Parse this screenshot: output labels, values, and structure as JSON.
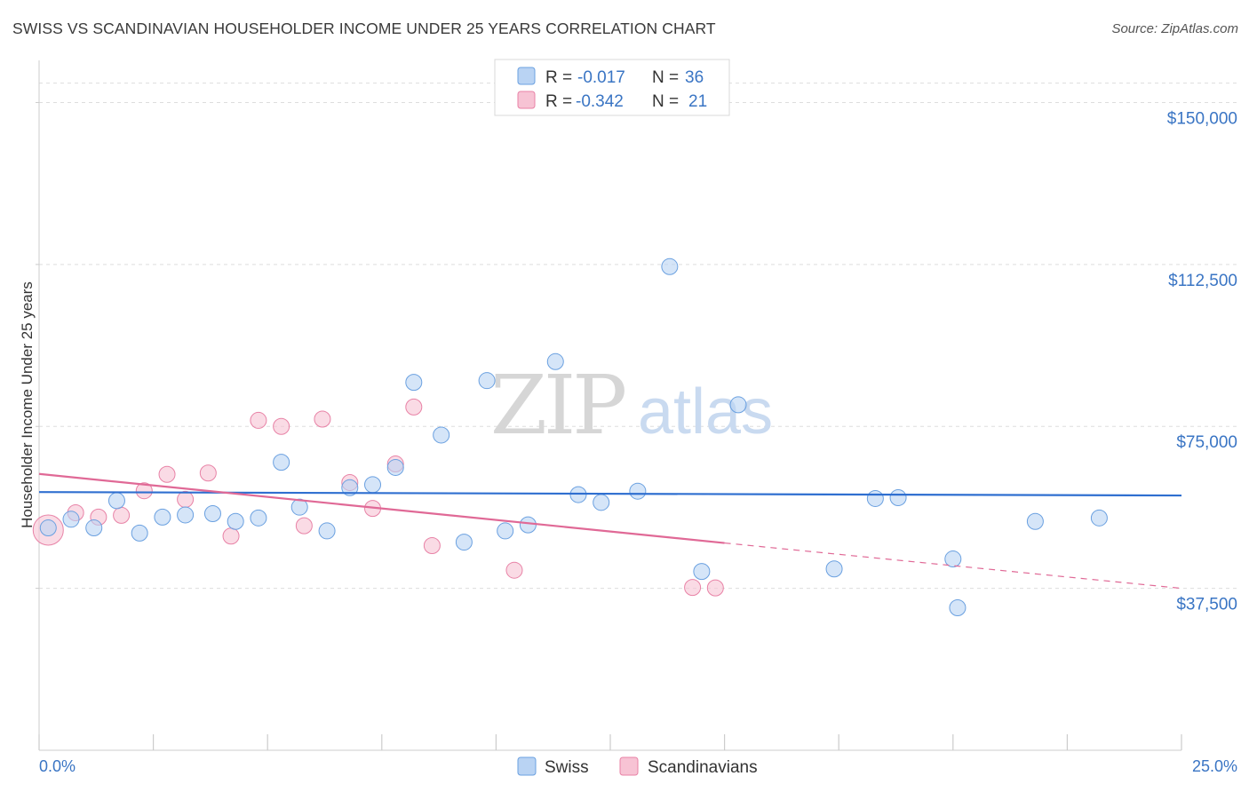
{
  "title": "SWISS VS SCANDINAVIAN HOUSEHOLDER INCOME UNDER 25 YEARS CORRELATION CHART",
  "source": "Source: ZipAtlas.com",
  "watermark": {
    "zip": "ZIP",
    "atlas": "atlas"
  },
  "colors": {
    "swiss": "#6aa0e0",
    "swiss_fill": "#b9d3f3",
    "scand": "#e882a6",
    "scand_fill": "#f7c3d4",
    "swiss_line": "#2f6fd0",
    "scand_line": "#e06996",
    "axis_text": "#3a75c4"
  },
  "legend_top": {
    "swiss": {
      "r_label": "R =",
      "r_value": "-0.017",
      "n_label": "N =",
      "n_value": "36"
    },
    "scand": {
      "r_label": "R =",
      "r_value": "-0.342",
      "n_label": "N =",
      "n_value": "21"
    }
  },
  "legend_bottom": {
    "swiss": "Swiss",
    "scand": "Scandinavians"
  },
  "chart_data": {
    "type": "scatter",
    "title": "SWISS VS SCANDINAVIAN HOUSEHOLDER INCOME UNDER 25 YEARS CORRELATION CHART",
    "xlabel": "",
    "ylabel": "Householder Income Under 25 years",
    "xlim": [
      0,
      25
    ],
    "ylim": [
      0,
      157500
    ],
    "x_tick_labels": [
      "0.0%",
      "25.0%"
    ],
    "y_ticks": [
      37500,
      75000,
      112500,
      150000
    ],
    "y_tick_labels": [
      "$37,500",
      "$75,000",
      "$112,500",
      "$150,000"
    ],
    "grid": true,
    "series": [
      {
        "name": "Swiss",
        "r": -0.017,
        "n": 36,
        "trend": {
          "x": [
            0,
            25
          ],
          "y": [
            59800,
            59000
          ]
        },
        "points": [
          [
            0.2,
            51500,
            1
          ],
          [
            0.7,
            53500,
            1
          ],
          [
            1.2,
            51500,
            1
          ],
          [
            1.7,
            57800,
            1
          ],
          [
            2.2,
            50300,
            1
          ],
          [
            2.7,
            54000,
            1
          ],
          [
            3.2,
            54500,
            1
          ],
          [
            3.8,
            54800,
            1
          ],
          [
            4.3,
            53000,
            1
          ],
          [
            4.8,
            53800,
            1
          ],
          [
            5.3,
            66700,
            1
          ],
          [
            5.7,
            56300,
            1
          ],
          [
            6.3,
            50800,
            1
          ],
          [
            6.8,
            60800,
            1
          ],
          [
            7.3,
            61500,
            1
          ],
          [
            7.8,
            65500,
            1
          ],
          [
            8.2,
            85200,
            1
          ],
          [
            8.8,
            73000,
            1
          ],
          [
            9.3,
            48200,
            1
          ],
          [
            9.8,
            85600,
            1
          ],
          [
            10.2,
            50800,
            1
          ],
          [
            10.7,
            52200,
            1
          ],
          [
            11.3,
            90000,
            1
          ],
          [
            11.8,
            59200,
            1
          ],
          [
            12.3,
            57400,
            1
          ],
          [
            13.1,
            60000,
            1
          ],
          [
            13.8,
            112000,
            1
          ],
          [
            14.5,
            41400,
            1
          ],
          [
            15.3,
            80000,
            1
          ],
          [
            17.4,
            42000,
            1
          ],
          [
            18.3,
            58300,
            1
          ],
          [
            18.8,
            58500,
            1
          ],
          [
            20.0,
            44300,
            1
          ],
          [
            20.1,
            33000,
            1
          ],
          [
            21.8,
            53000,
            1
          ],
          [
            23.2,
            53800,
            1
          ]
        ]
      },
      {
        "name": "Scandinavians",
        "r": -0.342,
        "n": 21,
        "trend": {
          "x": [
            0,
            15
          ],
          "y": [
            64000,
            48000
          ]
        },
        "trend_dashed": {
          "x": [
            15,
            25
          ],
          "y": [
            48000,
            37500
          ]
        },
        "points": [
          [
            0.2,
            51000,
            2
          ],
          [
            0.8,
            55000,
            1
          ],
          [
            1.3,
            54000,
            1
          ],
          [
            1.8,
            54400,
            1
          ],
          [
            2.3,
            60100,
            1
          ],
          [
            2.8,
            63900,
            1
          ],
          [
            3.2,
            58100,
            1
          ],
          [
            3.7,
            64200,
            1
          ],
          [
            4.2,
            49600,
            1
          ],
          [
            4.8,
            76400,
            1
          ],
          [
            5.3,
            75000,
            1
          ],
          [
            5.8,
            52000,
            1
          ],
          [
            6.2,
            76700,
            1
          ],
          [
            6.8,
            62000,
            1
          ],
          [
            7.3,
            56000,
            1
          ],
          [
            7.8,
            66300,
            1
          ],
          [
            8.2,
            79500,
            1
          ],
          [
            8.6,
            47400,
            1
          ],
          [
            10.4,
            41700,
            1
          ],
          [
            14.3,
            37700,
            1
          ],
          [
            14.8,
            37600,
            1
          ]
        ]
      }
    ]
  }
}
